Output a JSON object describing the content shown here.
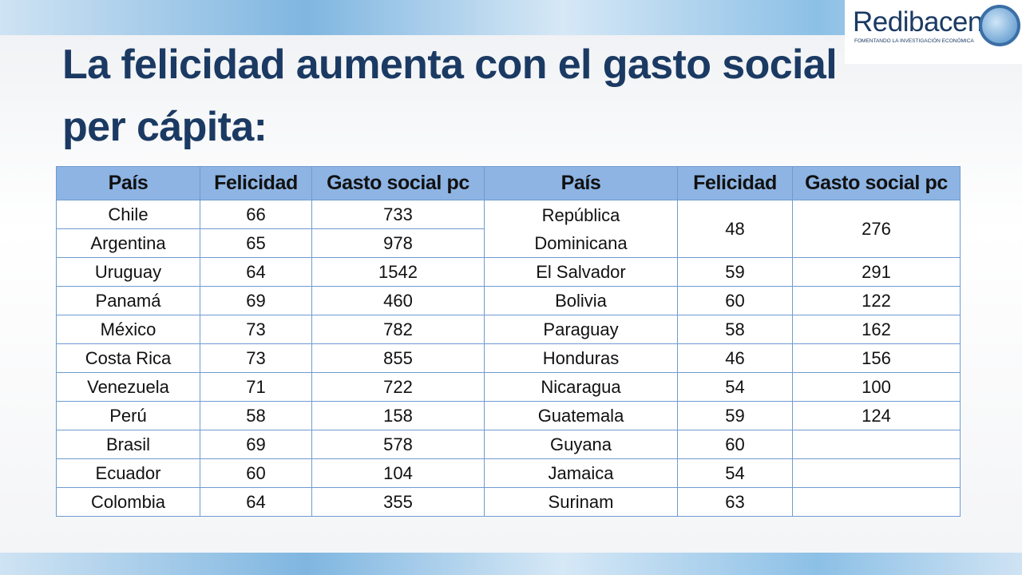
{
  "header": {
    "title": [
      "La felicidad aumenta con el gasto social",
      "per cápita:"
    ],
    "logo": {
      "name": "Redibacen",
      "tagline": "FOMENTANDO LA INVESTIGACIÓN ECONÓMICA"
    }
  },
  "table": {
    "headers": [
      "País",
      "Felicidad",
      "Gasto social pc",
      "País",
      "Felicidad",
      "Gasto social pc"
    ],
    "left": [
      [
        "Chile",
        66,
        733
      ],
      [
        "Argentina",
        65,
        978
      ],
      [
        "Uruguay",
        64,
        1542
      ],
      [
        "Panamá",
        69,
        460
      ],
      [
        "México",
        73,
        782
      ],
      [
        "Costa Rica",
        73,
        855
      ],
      [
        "Venezuela",
        71,
        722
      ],
      [
        "Perú",
        58,
        158
      ],
      [
        "Brasil",
        69,
        578
      ],
      [
        "Ecuador",
        60,
        104
      ],
      [
        "Colombia",
        64,
        355
      ]
    ],
    "right": [
      [
        "República Dominicana",
        48,
        276
      ],
      [
        "El Salvador",
        59,
        291
      ],
      [
        "Bolivia",
        60,
        122
      ],
      [
        "Paraguay",
        58,
        162
      ],
      [
        "Honduras",
        46,
        156
      ],
      [
        "Nicaragua",
        54,
        100
      ],
      [
        "Guatemala",
        59,
        124
      ],
      [
        "Guyana",
        60
      ],
      [
        "Jamaica",
        54
      ],
      [
        "Surinam",
        63
      ]
    ]
  }
}
